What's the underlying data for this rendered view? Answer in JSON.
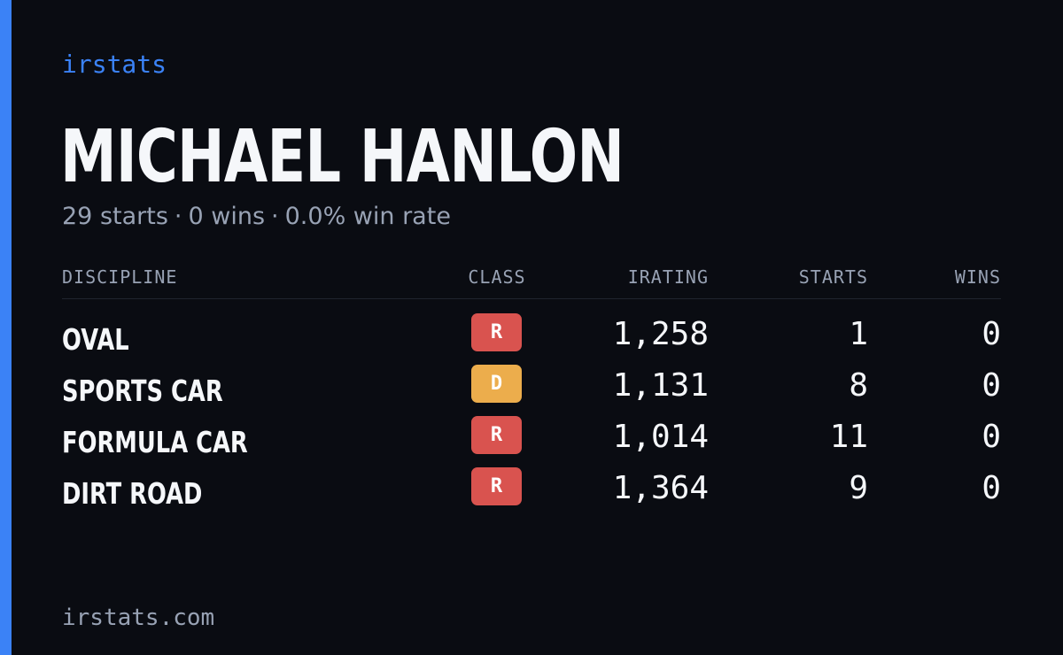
{
  "brand": "irstats",
  "driver_name": "MICHAEL HANLON",
  "summary": {
    "starts": "29 starts",
    "wins": "0 wins",
    "win_rate": "0.0% win rate",
    "separator": "·"
  },
  "table": {
    "headers": {
      "discipline": "DISCIPLINE",
      "class": "CLASS",
      "irating": "IRATING",
      "starts": "STARTS",
      "wins": "WINS"
    },
    "rows": [
      {
        "discipline": "OVAL",
        "class": "R",
        "class_color": "#d9534f",
        "irating": "1,258",
        "starts": "1",
        "wins": "0"
      },
      {
        "discipline": "SPORTS CAR",
        "class": "D",
        "class_color": "#ecad4c",
        "irating": "1,131",
        "starts": "8",
        "wins": "0"
      },
      {
        "discipline": "FORMULA CAR",
        "class": "R",
        "class_color": "#d9534f",
        "irating": "1,014",
        "starts": "11",
        "wins": "0"
      },
      {
        "discipline": "DIRT ROAD",
        "class": "R",
        "class_color": "#d9534f",
        "irating": "1,364",
        "starts": "9",
        "wins": "0"
      }
    ]
  },
  "footer": "irstats.com",
  "colors": {
    "accent": "#3b82f6",
    "background": "#0a0c12",
    "text_primary": "#f5f7fa",
    "text_muted": "#98a2b4"
  }
}
